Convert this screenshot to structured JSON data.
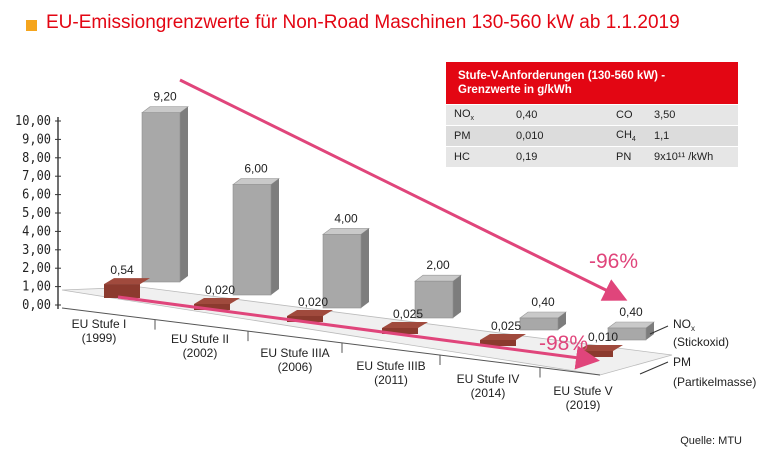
{
  "header": {
    "title": "EU-Emissiongrenzwerte für Non-Road Maschinen 130-560 kW ab 1.1.2019"
  },
  "table": {
    "title": "Stufe-V-Anforderungen (130-560 kW) - Grenzwerte in g/kWh",
    "rows": [
      {
        "p1": "NOx",
        "v1": "0,40",
        "p2": "CO",
        "v2": "3,50"
      },
      {
        "p1": "PM",
        "v1": "0,010",
        "p2": "CH4",
        "v2": "1,1"
      },
      {
        "p1": "HC",
        "v1": "0,19",
        "p2": "PN",
        "v2": "9x10¹¹ /kWh"
      }
    ]
  },
  "source": "Quelle: MTU",
  "colors": {
    "accent": "#e30613",
    "bar": "#a8a8a8",
    "pm_bar": "#8b3a2e",
    "arrow": "#e0457b",
    "title_square": "#f5a51d"
  },
  "chart_data": {
    "type": "bar",
    "categories": [
      "EU Stufe I (1999)",
      "EU Stufe II (2002)",
      "EU Stufe IIIA (2006)",
      "EU Stufe IIIB (2011)",
      "EU Stufe IV (2014)",
      "EU Stufe V (2019)"
    ],
    "series": [
      {
        "name": "NOx (Stickoxid)",
        "values": [
          9.2,
          6.0,
          4.0,
          2.0,
          0.4,
          0.4
        ],
        "labels": [
          "9,20",
          "6,00",
          "4,00",
          "2,00",
          "0,40",
          "0,40"
        ]
      },
      {
        "name": "PM (Partikelmasse)",
        "values": [
          0.54,
          0.02,
          0.02,
          0.025,
          0.025,
          0.01
        ],
        "labels": [
          "0,54",
          "0,020",
          "0,020",
          "0,025",
          "0,025",
          "0,010"
        ]
      }
    ],
    "yticks": [
      "0,00",
      "1,00",
      "2,00",
      "3,00",
      "4,00",
      "5,00",
      "6,00",
      "7,00",
      "8,00",
      "9,00",
      "10,00"
    ],
    "ylim": [
      0,
      10
    ],
    "annotations": [
      {
        "text": "-96%",
        "series": "NOx"
      },
      {
        "text": "-98%",
        "series": "PM"
      }
    ]
  }
}
